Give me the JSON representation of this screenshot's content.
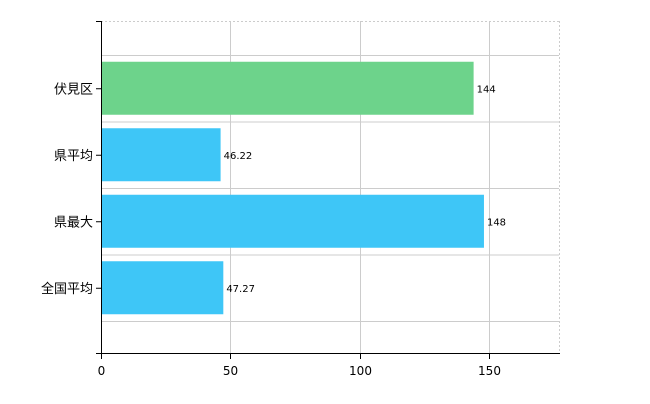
{
  "chart_data": {
    "type": "bar",
    "orientation": "horizontal",
    "categories": [
      "伏見区",
      "県平均",
      "県最大",
      "全国平均"
    ],
    "values": [
      144,
      46.22,
      148,
      47.27
    ],
    "value_labels": [
      "144",
      "46.22",
      "148",
      "47.27"
    ],
    "bar_colors": [
      "#6dd38b",
      "#3ec6f7",
      "#3ec6f7",
      "#3ec6f7"
    ],
    "x_ticks": [
      0,
      50,
      100,
      150
    ],
    "xlim": [
      0,
      177
    ],
    "grid": true,
    "legend": "none",
    "gridline_color": "#cccccc",
    "axis_color": "#000000"
  }
}
